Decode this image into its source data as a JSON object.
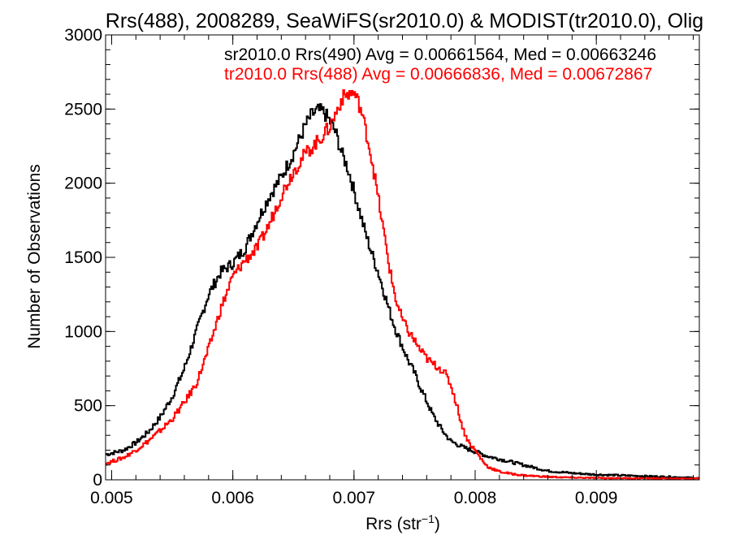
{
  "chart_data": {
    "type": "histogram-step",
    "title": "Rrs(488), 2008289, SeaWiFS(sr2010.0) & MODIST(tr2010.0), Olig",
    "xlabel": "Rrs (str",
    "xlabel_sup": "−1",
    "xlabel_close": ")",
    "ylabel": "Number of Observations",
    "xlim": [
      0.00495,
      0.00985
    ],
    "ylim": [
      0,
      3000
    ],
    "xticks": [
      0.005,
      0.006,
      0.007,
      0.008,
      0.009
    ],
    "xtick_labels": [
      "0.005",
      "0.006",
      "0.007",
      "0.008",
      "0.009"
    ],
    "yticks": [
      0,
      500,
      1000,
      1500,
      2000,
      2500,
      3000
    ],
    "ytick_labels": [
      "0",
      "500",
      "1000",
      "1500",
      "2000",
      "2500",
      "3000"
    ],
    "x_minor_step": 0.0002,
    "y_minor_step": 100,
    "grid": false,
    "legend_position": "top-right",
    "series": [
      {
        "name": "sr2010.0 Rrs(490) Avg = 0.00661564, Med = 0.00663246",
        "color": "#000000",
        "points": [
          [
            0.00495,
            170
          ],
          [
            0.0051,
            200
          ],
          [
            0.0052,
            250
          ],
          [
            0.0053,
            320
          ],
          [
            0.0054,
            420
          ],
          [
            0.0055,
            560
          ],
          [
            0.0056,
            750
          ],
          [
            0.0057,
            1000
          ],
          [
            0.0058,
            1250
          ],
          [
            0.0059,
            1400
          ],
          [
            0.006,
            1460
          ],
          [
            0.0061,
            1560
          ],
          [
            0.0062,
            1740
          ],
          [
            0.0063,
            1910
          ],
          [
            0.0064,
            2040
          ],
          [
            0.0065,
            2200
          ],
          [
            0.0066,
            2390
          ],
          [
            0.00665,
            2460
          ],
          [
            0.0067,
            2490
          ],
          [
            0.00675,
            2480
          ],
          [
            0.0068,
            2420
          ],
          [
            0.00685,
            2340
          ],
          [
            0.0069,
            2200
          ],
          [
            0.00695,
            2100
          ],
          [
            0.007,
            1950
          ],
          [
            0.00705,
            1800
          ],
          [
            0.0071,
            1650
          ],
          [
            0.00715,
            1520
          ],
          [
            0.0072,
            1400
          ],
          [
            0.00725,
            1260
          ],
          [
            0.0073,
            1120
          ],
          [
            0.00735,
            1000
          ],
          [
            0.0074,
            900
          ],
          [
            0.00745,
            800
          ],
          [
            0.0075,
            720
          ],
          [
            0.00755,
            620
          ],
          [
            0.0076,
            530
          ],
          [
            0.00765,
            440
          ],
          [
            0.0077,
            370
          ],
          [
            0.00775,
            310
          ],
          [
            0.0078,
            260
          ],
          [
            0.0079,
            220
          ],
          [
            0.008,
            190
          ],
          [
            0.0081,
            160
          ],
          [
            0.0082,
            140
          ],
          [
            0.0083,
            120
          ],
          [
            0.0084,
            100
          ],
          [
            0.0085,
            80
          ],
          [
            0.0086,
            60
          ],
          [
            0.0088,
            45
          ],
          [
            0.009,
            35
          ],
          [
            0.0092,
            30
          ],
          [
            0.0094,
            25
          ],
          [
            0.0096,
            20
          ],
          [
            0.00985,
            12
          ]
        ]
      },
      {
        "name": "tr2010.0 Rrs(488) Avg = 0.00666836, Med = 0.00672867",
        "color": "#ff0000",
        "points": [
          [
            0.00495,
            110
          ],
          [
            0.0051,
            150
          ],
          [
            0.0052,
            200
          ],
          [
            0.0053,
            260
          ],
          [
            0.0054,
            330
          ],
          [
            0.0055,
            410
          ],
          [
            0.0056,
            520
          ],
          [
            0.0057,
            650
          ],
          [
            0.0058,
            880
          ],
          [
            0.0059,
            1150
          ],
          [
            0.006,
            1370
          ],
          [
            0.0061,
            1480
          ],
          [
            0.0062,
            1560
          ],
          [
            0.0063,
            1720
          ],
          [
            0.0064,
            1920
          ],
          [
            0.0065,
            2080
          ],
          [
            0.0066,
            2200
          ],
          [
            0.0067,
            2280
          ],
          [
            0.0068,
            2380
          ],
          [
            0.00685,
            2470
          ],
          [
            0.0069,
            2570
          ],
          [
            0.00695,
            2600
          ],
          [
            0.007,
            2610
          ],
          [
            0.00705,
            2520
          ],
          [
            0.0071,
            2350
          ],
          [
            0.00715,
            2150
          ],
          [
            0.0072,
            1900
          ],
          [
            0.00725,
            1650
          ],
          [
            0.0073,
            1400
          ],
          [
            0.00735,
            1200
          ],
          [
            0.0074,
            1080
          ],
          [
            0.00745,
            1000
          ],
          [
            0.0075,
            940
          ],
          [
            0.00755,
            870
          ],
          [
            0.0076,
            820
          ],
          [
            0.00765,
            780
          ],
          [
            0.0077,
            760
          ],
          [
            0.00775,
            720
          ],
          [
            0.0078,
            640
          ],
          [
            0.00785,
            500
          ],
          [
            0.0079,
            340
          ],
          [
            0.00795,
            250
          ],
          [
            0.008,
            200
          ],
          [
            0.00805,
            140
          ],
          [
            0.0081,
            90
          ],
          [
            0.0082,
            55
          ],
          [
            0.0083,
            40
          ],
          [
            0.0084,
            30
          ],
          [
            0.0086,
            20
          ],
          [
            0.0088,
            15
          ],
          [
            0.009,
            12
          ],
          [
            0.0094,
            10
          ],
          [
            0.00985,
            8
          ]
        ]
      }
    ]
  }
}
